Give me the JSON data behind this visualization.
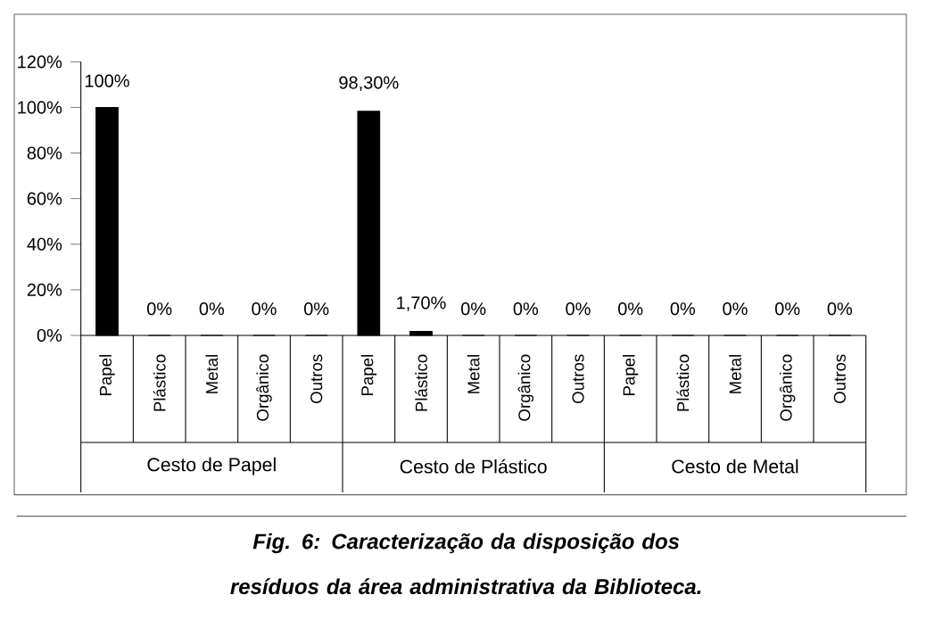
{
  "chart_data": {
    "type": "bar",
    "categories": [
      "Papel",
      "Plástico",
      "Metal",
      "Orgânico",
      "Outros",
      "Papel",
      "Plástico",
      "Metal",
      "Orgânico",
      "Outros",
      "Papel",
      "Plástico",
      "Metal",
      "Orgânico",
      "Outros"
    ],
    "values": [
      100,
      0,
      0,
      0,
      0,
      98.3,
      1.7,
      0,
      0,
      0,
      0,
      0,
      0,
      0,
      0
    ],
    "value_labels": [
      "100%",
      "0%",
      "0%",
      "0%",
      "0%",
      "98,30%",
      "1,70%",
      "0%",
      "0%",
      "0%",
      "0%",
      "0%",
      "0%",
      "0%",
      "0%"
    ],
    "color": "#000000",
    "ylim": [
      0,
      120
    ],
    "yticks": [
      {
        "value": 0,
        "label": "0%"
      },
      {
        "value": 20,
        "label": "20%"
      },
      {
        "value": 40,
        "label": "40%"
      },
      {
        "value": 60,
        "label": "60%"
      },
      {
        "value": 80,
        "label": "80%"
      },
      {
        "value": 100,
        "label": "100%"
      },
      {
        "value": 120,
        "label": "120%"
      }
    ],
    "annotations": [
      "Cesto de Papel",
      "Cesto de Plástico",
      "Cesto de Metal",
      "Fig. 6: Caracterização da disposição dos resíduos da área administrativa da Biblioteca."
    ]
  }
}
